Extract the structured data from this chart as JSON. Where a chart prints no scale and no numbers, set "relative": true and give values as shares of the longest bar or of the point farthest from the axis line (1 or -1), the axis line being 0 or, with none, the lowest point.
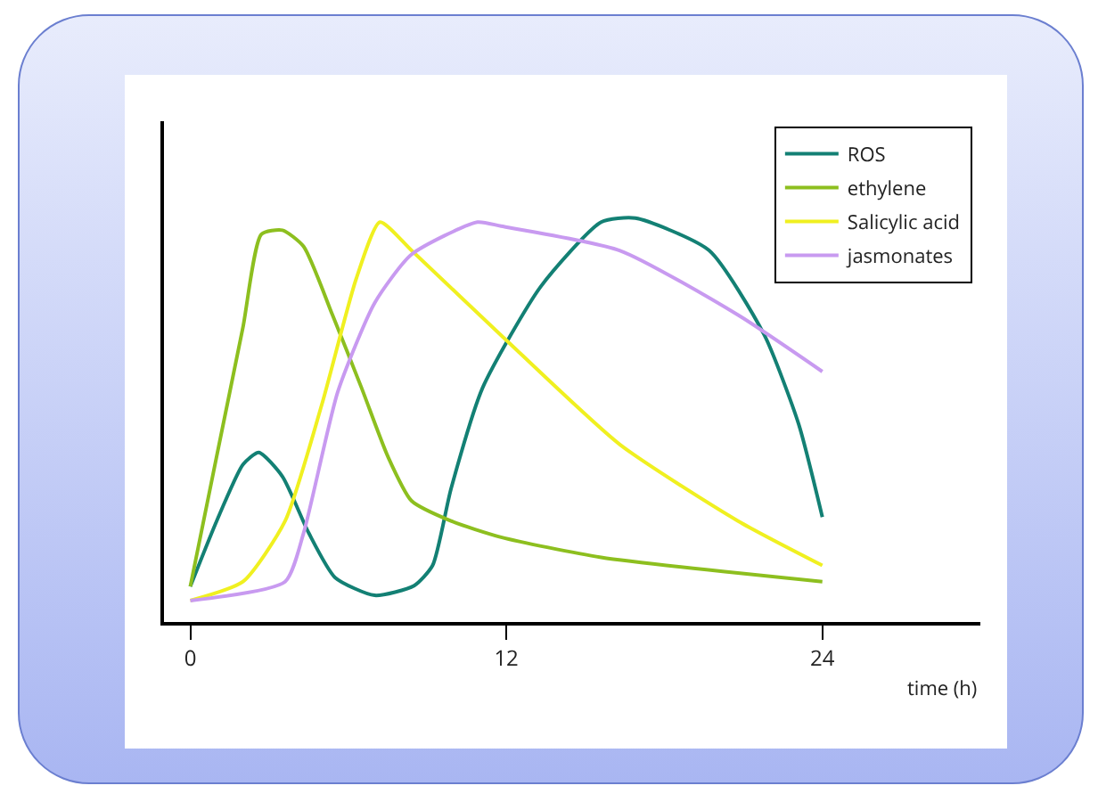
{
  "chart_data": {
    "type": "line",
    "relative": true,
    "xlabel": "time (h)",
    "xlim": [
      -1,
      30
    ],
    "xticks": [
      0,
      12,
      24
    ],
    "legend": "top right",
    "grid": false,
    "marker": "none",
    "line_style": "solid",
    "series": [
      {
        "name": "ROS",
        "color": "#138074",
        "x": [
          0,
          1,
          2,
          2.6,
          3.5,
          4.5,
          5.5,
          7.0,
          8.5,
          9.2,
          9.9,
          11.1,
          13.3,
          15.6,
          16.9,
          19.7,
          21.8,
          23.1,
          24
        ],
        "values": [
          0.088,
          0.25,
          0.39,
          0.42,
          0.36,
          0.22,
          0.11,
          0.066,
          0.09,
          0.14,
          0.33,
          0.58,
          0.83,
          0.99,
          1.0,
          0.92,
          0.71,
          0.49,
          0.26
        ]
      },
      {
        "name": "ethylene",
        "color": "#8dbf1f",
        "x": [
          0,
          1,
          2,
          2.7,
          3.5,
          4.3,
          5.4,
          6.5,
          7.5,
          8.4,
          9.9,
          11.8,
          15.6,
          24
        ],
        "values": [
          0.088,
          0.41,
          0.73,
          0.96,
          0.97,
          0.93,
          0.76,
          0.58,
          0.41,
          0.3,
          0.25,
          0.21,
          0.16,
          0.1
        ]
      },
      {
        "name": "Salicylic acid",
        "color": "#f0f020",
        "x": [
          0,
          2.0,
          3.6,
          5.0,
          6.3,
          7.2,
          8.4,
          11.8,
          16.3,
          20.8,
          24
        ],
        "values": [
          0.053,
          0.1,
          0.25,
          0.54,
          0.85,
          0.99,
          0.92,
          0.71,
          0.44,
          0.25,
          0.14
        ]
      },
      {
        "name": "jasmonates",
        "color": "#c89af0",
        "x": [
          0,
          3.6,
          4.3,
          5.6,
          7.0,
          8.4,
          10.9,
          11.8,
          16.3,
          20.8,
          24
        ],
        "values": [
          0.053,
          0.1,
          0.22,
          0.57,
          0.79,
          0.91,
          0.99,
          0.98,
          0.92,
          0.76,
          0.62
        ]
      }
    ]
  }
}
